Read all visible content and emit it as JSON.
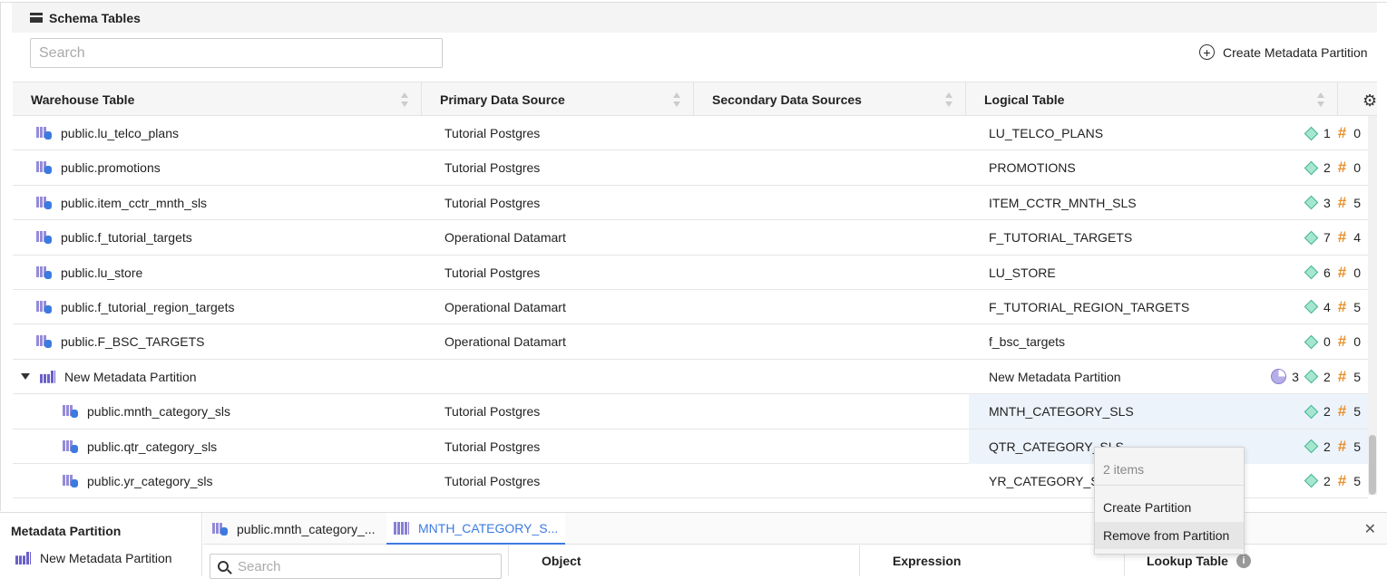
{
  "header": {
    "title": "Schema Tables",
    "search_placeholder": "Search",
    "create_label": "Create Metadata Partition"
  },
  "columns": [
    "Warehouse Table",
    "Primary Data Source",
    "Secondary Data Sources",
    "Logical Table"
  ],
  "rows": [
    {
      "warehouse": "public.lu_telco_plans",
      "primary": "Tutorial Postgres",
      "logical": "LU_TELCO_PLANS",
      "attrs": "1",
      "metrics": "0"
    },
    {
      "warehouse": "public.promotions",
      "primary": "Tutorial Postgres",
      "logical": "PROMOTIONS",
      "attrs": "2",
      "metrics": "0"
    },
    {
      "warehouse": "public.item_cctr_mnth_sls",
      "primary": "Tutorial Postgres",
      "logical": "ITEM_CCTR_MNTH_SLS",
      "attrs": "3",
      "metrics": "5"
    },
    {
      "warehouse": "public.f_tutorial_targets",
      "primary": "Operational Datamart",
      "logical": "F_TUTORIAL_TARGETS",
      "attrs": "7",
      "metrics": "4"
    },
    {
      "warehouse": "public.lu_store",
      "primary": "Tutorial Postgres",
      "logical": "LU_STORE",
      "attrs": "6",
      "metrics": "0"
    },
    {
      "warehouse": "public.f_tutorial_region_targets",
      "primary": "Operational Datamart",
      "logical": "F_TUTORIAL_REGION_TARGETS",
      "attrs": "4",
      "metrics": "5"
    },
    {
      "warehouse": "public.F_BSC_TARGETS",
      "primary": "Operational Datamart",
      "logical": "f_bsc_targets",
      "attrs": "0",
      "metrics": "0"
    }
  ],
  "partition": {
    "name": "New Metadata Partition",
    "logical": "New Metadata Partition",
    "tables": "3",
    "attrs": "2",
    "metrics": "5"
  },
  "children": [
    {
      "warehouse": "public.mnth_category_sls",
      "primary": "Tutorial Postgres",
      "logical": "MNTH_CATEGORY_SLS",
      "attrs": "2",
      "metrics": "5",
      "selected": true
    },
    {
      "warehouse": "public.qtr_category_sls",
      "primary": "Tutorial Postgres",
      "logical": "QTR_CATEGORY_SLS",
      "attrs": "2",
      "metrics": "5",
      "selected": true
    },
    {
      "warehouse": "public.yr_category_sls",
      "primary": "Tutorial Postgres",
      "logical": "YR_CATEGORY_SLS",
      "attrs": "2",
      "metrics": "5",
      "selected": false
    }
  ],
  "context_menu": {
    "count": "2 items",
    "items": [
      "Create Partition",
      "Remove from Partition"
    ]
  },
  "bottom": {
    "title": "Metadata Partition",
    "partition": "New Metadata Partition",
    "tabs": [
      "public.mnth_category_...",
      "MNTH_CATEGORY_S..."
    ],
    "search_placeholder": "Search",
    "columns": [
      "Object",
      "Expression",
      "Lookup Table"
    ]
  },
  "colors": {
    "accent": "#3b7be0",
    "selected_row": "#edf3fb",
    "attribute": "#3fb58f",
    "metric": "#e8912d"
  }
}
